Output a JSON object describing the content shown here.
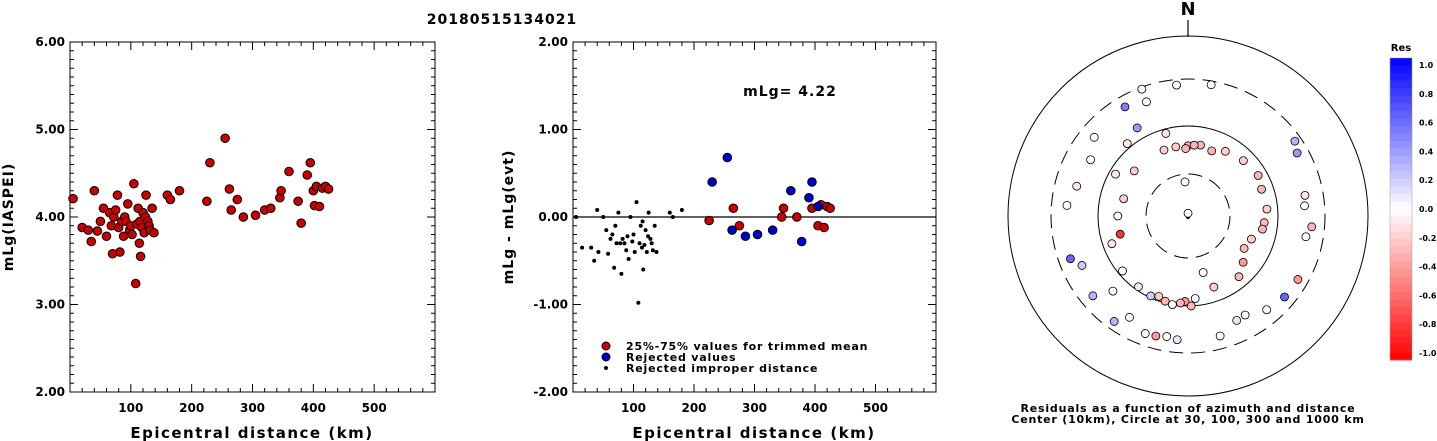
{
  "title": "20180515134021",
  "chart_data": [
    {
      "type": "scatter",
      "xlabel": "Epicentral distance (km)",
      "ylabel": "mLg(IASPEI)",
      "xlim": [
        0,
        600
      ],
      "ylim": [
        2.0,
        6.0
      ],
      "xticks": [
        "100",
        "200",
        "300",
        "400",
        "500"
      ],
      "yticks": [
        "2.00",
        "3.00",
        "4.00",
        "5.00",
        "6.00"
      ],
      "marker_color": "#cc0000",
      "points": [
        [
          5,
          4.21
        ],
        [
          20,
          3.88
        ],
        [
          30,
          3.85
        ],
        [
          35,
          3.72
        ],
        [
          40,
          4.3
        ],
        [
          45,
          3.84
        ],
        [
          50,
          3.95
        ],
        [
          55,
          4.1
        ],
        [
          60,
          3.78
        ],
        [
          65,
          4.05
        ],
        [
          68,
          3.9
        ],
        [
          70,
          3.58
        ],
        [
          72,
          4.0
        ],
        [
          75,
          4.08
        ],
        [
          78,
          4.25
        ],
        [
          80,
          3.88
        ],
        [
          82,
          3.6
        ],
        [
          85,
          3.95
        ],
        [
          88,
          3.78
        ],
        [
          90,
          4.0
        ],
        [
          92,
          3.95
        ],
        [
          95,
          4.15
        ],
        [
          98,
          3.85
        ],
        [
          100,
          3.9
        ],
        [
          102,
          3.8
        ],
        [
          105,
          4.38
        ],
        [
          108,
          3.24
        ],
        [
          110,
          3.92
        ],
        [
          112,
          4.1
        ],
        [
          114,
          3.7
        ],
        [
          115,
          3.95
        ],
        [
          116,
          3.55
        ],
        [
          118,
          3.88
        ],
        [
          120,
          4.05
        ],
        [
          122,
          3.82
        ],
        [
          124,
          4.0
        ],
        [
          125,
          4.25
        ],
        [
          128,
          3.95
        ],
        [
          130,
          3.9
        ],
        [
          132,
          3.85
        ],
        [
          135,
          4.1
        ],
        [
          138,
          3.82
        ],
        [
          160,
          4.25
        ],
        [
          165,
          4.2
        ],
        [
          180,
          4.3
        ],
        [
          225,
          4.18
        ],
        [
          230,
          4.62
        ],
        [
          255,
          4.9
        ],
        [
          262,
          4.32
        ],
        [
          265,
          4.08
        ],
        [
          275,
          4.2
        ],
        [
          285,
          4.0
        ],
        [
          305,
          4.02
        ],
        [
          320,
          4.08
        ],
        [
          330,
          4.1
        ],
        [
          345,
          4.22
        ],
        [
          347,
          4.3
        ],
        [
          360,
          4.52
        ],
        [
          375,
          4.18
        ],
        [
          380,
          3.93
        ],
        [
          390,
          4.48
        ],
        [
          395,
          4.62
        ],
        [
          400,
          4.3
        ],
        [
          402,
          4.13
        ],
        [
          405,
          4.35
        ],
        [
          410,
          4.12
        ],
        [
          415,
          4.33
        ],
        [
          420,
          4.35
        ],
        [
          425,
          4.32
        ]
      ]
    },
    {
      "type": "scatter",
      "xlabel": "Epicentral distance (km)",
      "ylabel": "mLg - mLg(evt)",
      "xlim": [
        0,
        600
      ],
      "ylim": [
        -2.0,
        2.0
      ],
      "xticks": [
        "100",
        "200",
        "300",
        "400",
        "500"
      ],
      "yticks": [
        "-2.00",
        "-1.00",
        "0.00",
        "1.00",
        "2.00"
      ],
      "annotation": "mLg= 4.22",
      "legend": [
        {
          "label": "25%-75% values for trimmed mean",
          "color": "#cc0000",
          "marker": "circle"
        },
        {
          "label": "Rejected values",
          "color": "#0000cc",
          "marker": "circle"
        },
        {
          "label": "Rejected improper distance",
          "color": "#000000",
          "marker": "dot"
        }
      ],
      "series": [
        {
          "name": "25%-75% values for trimmed mean",
          "color": "#cc0000",
          "points": [
            [
              225,
              -0.04
            ],
            [
              265,
              0.1
            ],
            [
              275,
              -0.1
            ],
            [
              345,
              0.0
            ],
            [
              348,
              0.1
            ],
            [
              370,
              0.0
            ],
            [
              395,
              0.1
            ],
            [
              405,
              -0.1
            ],
            [
              410,
              0.14
            ],
            [
              415,
              -0.12
            ],
            [
              420,
              0.12
            ],
            [
              425,
              0.1
            ]
          ]
        },
        {
          "name": "Rejected values",
          "color": "#0000cc",
          "points": [
            [
              230,
              0.4
            ],
            [
              255,
              0.68
            ],
            [
              263,
              -0.15
            ],
            [
              285,
              -0.22
            ],
            [
              305,
              -0.2
            ],
            [
              330,
              -0.15
            ],
            [
              360,
              0.3
            ],
            [
              378,
              -0.28
            ],
            [
              390,
              0.22
            ],
            [
              395,
              0.4
            ],
            [
              405,
              0.12
            ]
          ]
        },
        {
          "name": "Rejected improper distance",
          "color": "#000000",
          "points": [
            [
              5,
              0.0
            ],
            [
              15,
              -0.35
            ],
            [
              30,
              -0.35
            ],
            [
              35,
              -0.5
            ],
            [
              40,
              0.08
            ],
            [
              42,
              -0.4
            ],
            [
              50,
              -0.0
            ],
            [
              55,
              -0.15
            ],
            [
              58,
              -0.42
            ],
            [
              62,
              -0.25
            ],
            [
              65,
              -0.2
            ],
            [
              68,
              -0.58
            ],
            [
              70,
              -0.1
            ],
            [
              72,
              -0.3
            ],
            [
              75,
              0.05
            ],
            [
              78,
              -0.3
            ],
            [
              80,
              -0.65
            ],
            [
              82,
              -0.25
            ],
            [
              85,
              -0.3
            ],
            [
              88,
              -0.38
            ],
            [
              90,
              -0.22
            ],
            [
              92,
              -0.48
            ],
            [
              95,
              0.0
            ],
            [
              98,
              -0.28
            ],
            [
              100,
              -0.2
            ],
            [
              102,
              -0.4
            ],
            [
              105,
              0.17
            ],
            [
              108,
              -0.98
            ],
            [
              110,
              -0.3
            ],
            [
              112,
              -0.1
            ],
            [
              114,
              -0.35
            ],
            [
              115,
              -0.05
            ],
            [
              116,
              -0.6
            ],
            [
              118,
              -0.32
            ],
            [
              120,
              -0.15
            ],
            [
              122,
              -0.4
            ],
            [
              124,
              -0.22
            ],
            [
              125,
              0.05
            ],
            [
              128,
              -0.25
            ],
            [
              130,
              -0.3
            ],
            [
              132,
              -0.38
            ],
            [
              135,
              -0.1
            ],
            [
              138,
              -0.4
            ],
            [
              160,
              0.05
            ],
            [
              165,
              0.0
            ],
            [
              180,
              0.08
            ]
          ]
        }
      ]
    },
    {
      "type": "polar-scatter",
      "north_label": "N",
      "caption_line1": "Residuals as a function of azimuth and distance",
      "caption_line2": "Center (10km), Circle at 30, 100, 300 and 1000 km",
      "colorbar_title": "Res",
      "colorbar_ticks": [
        "1.0",
        "0.8",
        "0.6",
        "0.4",
        "0.2",
        "0.0",
        "-0.2",
        "-0.4",
        "-0.6",
        "-0.8",
        "-1.0"
      ],
      "points": [
        [
          1,
          0.03,
          0
        ],
        [
          355,
          0.38,
          0
        ],
        [
          10,
          0.8,
          -0.3
        ],
        [
          350,
          0.78,
          -0.2
        ],
        [
          0,
          0.78,
          -0.3
        ],
        [
          5,
          0.79,
          -0.3
        ],
        [
          358,
          0.75,
          -0.3
        ],
        [
          340,
          0.78,
          -0.2
        ],
        [
          20,
          0.77,
          -0.3
        ],
        [
          30,
          0.83,
          -0.2
        ],
        [
          45,
          0.87,
          -0.2
        ],
        [
          60,
          0.9,
          -0.3
        ],
        [
          70,
          0.87,
          -0.3
        ],
        [
          85,
          0.88,
          -0.2
        ],
        [
          95,
          0.85,
          -0.3
        ],
        [
          100,
          0.84,
          -0.3
        ],
        [
          110,
          0.75,
          -0.2
        ],
        [
          120,
          0.72,
          -0.3
        ],
        [
          130,
          0.8,
          -0.4
        ],
        [
          140,
          0.88,
          -0.3
        ],
        [
          160,
          0.84,
          -0.2
        ],
        [
          165,
          0.65,
          0.0
        ],
        [
          175,
          0.92,
          0.0
        ],
        [
          178,
          1.0,
          -0.3
        ],
        [
          182,
          0.95,
          -0.4
        ],
        [
          185,
          0.97,
          -0.3
        ],
        [
          190,
          1.0,
          0.0
        ],
        [
          195,
          0.98,
          -0.3
        ],
        [
          200,
          0.95,
          -0.2
        ],
        [
          205,
          0.98,
          0.2
        ],
        [
          215,
          0.96,
          -0.1
        ],
        [
          230,
          0.95,
          0.0
        ],
        [
          250,
          0.9,
          -0.1
        ],
        [
          255,
          0.78,
          -0.8
        ],
        [
          270,
          0.78,
          0.0
        ],
        [
          285,
          0.74,
          -0.2
        ],
        [
          300,
          0.93,
          -0.1
        ],
        [
          310,
          0.78,
          -0.2
        ],
        [
          320,
          1.05,
          -0.1
        ],
        [
          330,
          1.13,
          0.4
        ],
        [
          345,
          0.95,
          -0.1
        ],
        [
          10,
          1.48,
          0.0
        ],
        [
          55,
          1.45,
          0.3
        ],
        [
          80,
          1.32,
          -0.1
        ],
        [
          85,
          1.3,
          0.0
        ],
        [
          100,
          1.33,
          0.0
        ],
        [
          120,
          1.41,
          -0.4
        ],
        [
          130,
          1.4,
          0.6
        ],
        [
          150,
          1.27,
          0.0
        ],
        [
          155,
          1.28,
          0.1
        ],
        [
          165,
          1.38,
          0.0
        ],
        [
          185,
          1.38,
          0.1
        ],
        [
          190,
          1.36,
          0.0
        ],
        [
          195,
          1.38,
          -0.4
        ],
        [
          200,
          1.39,
          0.0
        ],
        [
          210,
          1.3,
          0.0
        ],
        [
          215,
          1.43,
          0.3
        ],
        [
          225,
          1.18,
          0.0
        ],
        [
          230,
          1.38,
          0.3
        ],
        [
          245,
          1.3,
          0.2
        ],
        [
          250,
          1.39,
          0.6
        ],
        [
          275,
          1.35,
          0.0
        ],
        [
          285,
          1.28,
          -0.1
        ],
        [
          300,
          1.25,
          0.0
        ],
        [
          330,
          1.4,
          0.5
        ],
        [
          340,
          1.35,
          0.0
        ],
        [
          355,
          1.46,
          0.0
        ],
        [
          340,
          1.5,
          0.0
        ],
        [
          60,
          1.4,
          0.4
        ],
        [
          95,
          1.38,
          -0.3
        ],
        [
          310,
          1.36,
          0.0
        ],
        [
          140,
          1.36,
          0.0
        ]
      ]
    }
  ]
}
